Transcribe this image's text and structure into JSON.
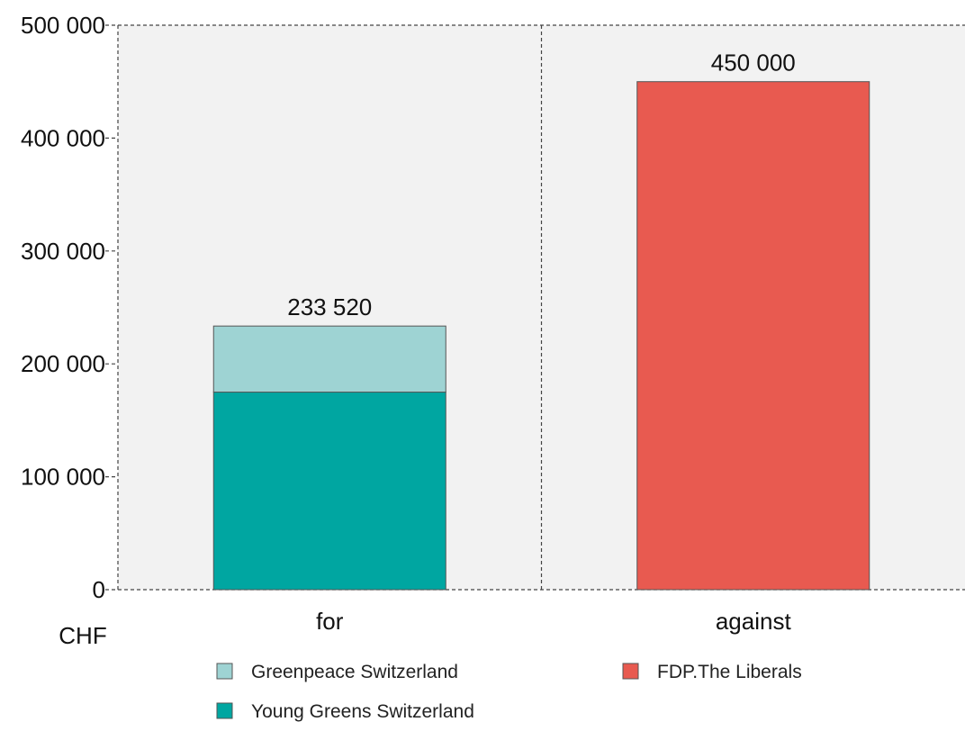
{
  "chart_data": {
    "type": "bar",
    "stacked": true,
    "categories": [
      "for",
      "against"
    ],
    "series": [
      {
        "name": "Young Greens Switzerland",
        "color": "#00a6a1",
        "values": [
          175000,
          0
        ]
      },
      {
        "name": "Greenpeace Switzerland",
        "color": "#9ed3d3",
        "values": [
          58520,
          0
        ]
      },
      {
        "name": "FDP.The Liberals",
        "color": "#e85a50",
        "values": [
          0,
          450000
        ]
      }
    ],
    "totals": [
      233520,
      450000
    ],
    "total_labels": [
      "233 520",
      "450 000"
    ],
    "y_unit": "CHF",
    "ylim": [
      0,
      500000
    ],
    "y_ticks": [
      0,
      100000,
      200000,
      300000,
      400000,
      500000
    ],
    "y_tick_labels": [
      "0",
      "100 000",
      "200 000",
      "300 000",
      "400 000",
      "500 000"
    ],
    "grid": true,
    "plot_background": "#f2f2f2",
    "legend_position": "bottom",
    "legend_order": [
      "Greenpeace Switzerland",
      "FDP.The Liberals",
      "Young Greens Switzerland"
    ]
  }
}
